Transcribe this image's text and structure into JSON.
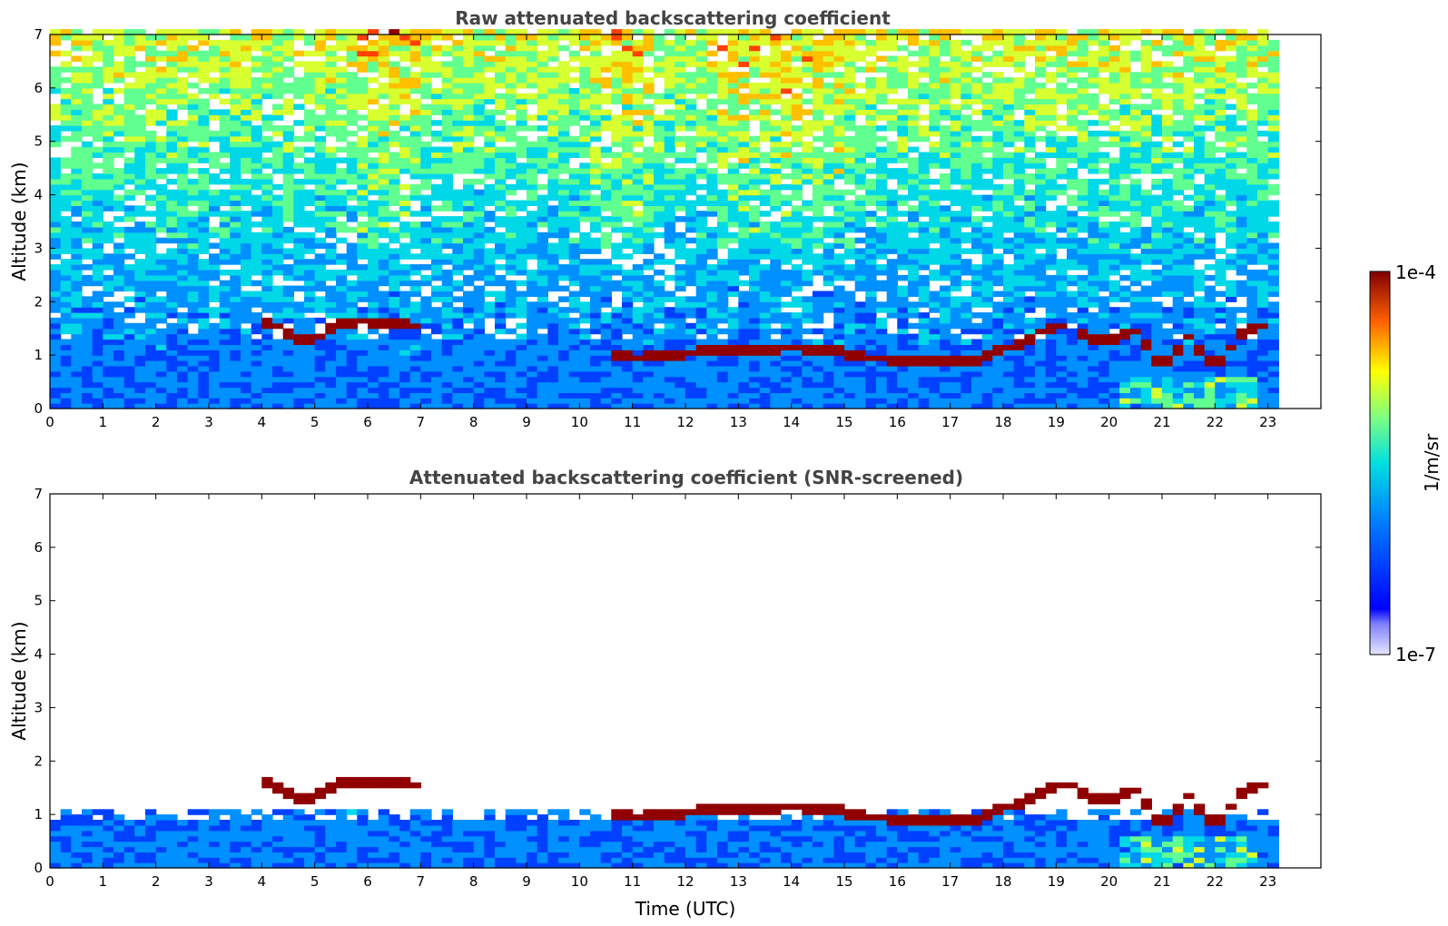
{
  "chart_data": [
    {
      "type": "heatmap",
      "title": "Raw attenuated backscattering coefficient",
      "xlabel": "",
      "ylabel": "Altitude (km)",
      "xlim": [
        0,
        24
      ],
      "ylim": [
        0,
        7
      ],
      "x_ticks": [
        "0",
        "1",
        "2",
        "3",
        "4",
        "5",
        "6",
        "7",
        "8",
        "9",
        "10",
        "11",
        "12",
        "13",
        "14",
        "15",
        "16",
        "17",
        "18",
        "19",
        "20",
        "21",
        "22",
        "23"
      ],
      "y_ticks": [
        "0",
        "1",
        "2",
        "3",
        "4",
        "5",
        "6",
        "7"
      ],
      "data_end_hour": 23,
      "screened": false,
      "cloud_layer_km": [
        [
          4.0,
          1.55
        ],
        [
          4.4,
          1.4
        ],
        [
          4.8,
          1.15
        ],
        [
          5.2,
          1.45
        ],
        [
          5.8,
          1.58
        ],
        [
          6.5,
          1.55
        ],
        [
          7.0,
          1.5
        ],
        [
          10.5,
          0.95
        ],
        [
          11.0,
          0.9
        ],
        [
          12.0,
          1.0
        ],
        [
          13.0,
          1.05
        ],
        [
          14.0,
          1.1
        ],
        [
          15.0,
          1.0
        ],
        [
          15.5,
          0.9
        ],
        [
          16.5,
          0.85
        ],
        [
          17.5,
          0.85
        ],
        [
          19.2,
          1.55
        ],
        [
          19.8,
          1.2
        ],
        [
          20.5,
          1.4
        ],
        [
          21.0,
          0.75
        ],
        [
          21.5,
          1.3
        ],
        [
          22.0,
          0.75
        ],
        [
          22.5,
          1.35
        ],
        [
          23.0,
          1.55
        ]
      ]
    },
    {
      "type": "heatmap",
      "title": "Attenuated backscattering coefficient (SNR-screened)",
      "xlabel": "Time (UTC)",
      "ylabel": "Altitude (km)",
      "xlim": [
        0,
        24
      ],
      "ylim": [
        0,
        7
      ],
      "x_ticks": [
        "0",
        "1",
        "2",
        "3",
        "4",
        "5",
        "6",
        "7",
        "8",
        "9",
        "10",
        "11",
        "12",
        "13",
        "14",
        "15",
        "16",
        "17",
        "18",
        "19",
        "20",
        "21",
        "22",
        "23"
      ],
      "y_ticks": [
        "0",
        "1",
        "2",
        "3",
        "4",
        "5",
        "6",
        "7"
      ],
      "data_end_hour": 23,
      "screened": true
    }
  ],
  "colorbar": {
    "label": "1/m/sr",
    "max_label": "1e-4",
    "min_label": "1e-7",
    "scale": "log",
    "colormap": "jet"
  },
  "colors": {
    "title": "#444444",
    "axis": "#000000",
    "cloud_top": "#8b0000"
  }
}
